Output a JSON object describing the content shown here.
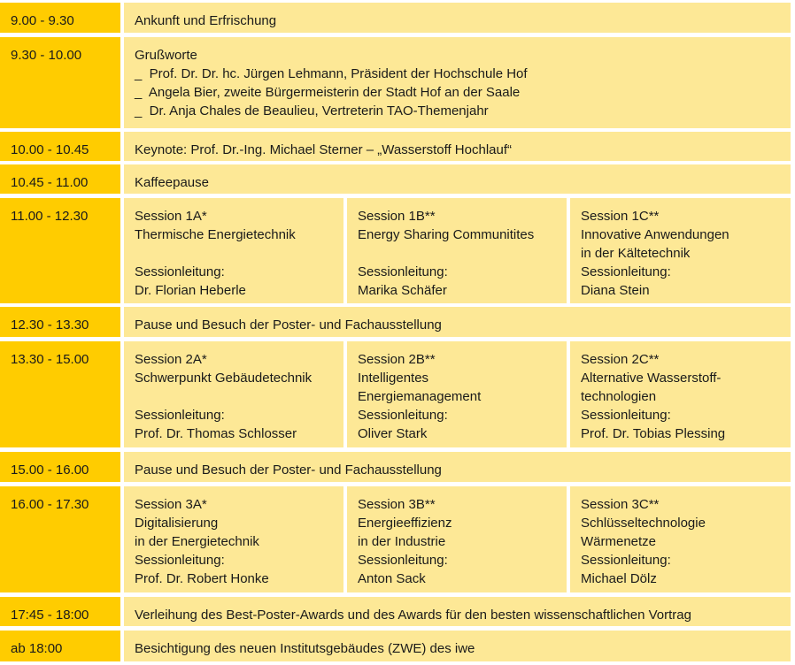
{
  "colors": {
    "time_bg": "#FFCC00",
    "content_bg": "#FDE896"
  },
  "rows": [
    {
      "time": "9.00 - 9.30",
      "lines": [
        "Ankunft und Erfrischung"
      ]
    },
    {
      "time": "9.30 - 10.00",
      "lines": [
        "Grußworte",
        "_  Prof. Dr. Dr. hc. Jürgen Lehmann, Präsident der Hochschule Hof",
        "_  Angela Bier, zweite Bürgermeisterin der Stadt Hof an der Saale",
        "_  Dr. Anja Chales de Beaulieu, Vertreterin TAO-Themenjahr"
      ]
    },
    {
      "time": "10.00 - 10.45",
      "lines": [
        "Keynote: Prof. Dr.-Ing. Michael Sterner – „Wasserstoff Hochlauf“"
      ]
    },
    {
      "time": "10.45 - 11.00",
      "lines": [
        "Kaffeepause"
      ]
    },
    {
      "time": "11.00 - 12.30",
      "sessions": [
        {
          "lines": [
            "Session 1A*",
            "Thermische Energietechnik",
            "",
            "Sessionleitung:",
            "Dr. Florian Heberle"
          ]
        },
        {
          "lines": [
            "Session 1B**",
            "Energy Sharing Communitites",
            "",
            "Sessionleitung:",
            "Marika Schäfer"
          ]
        },
        {
          "lines": [
            "Session 1C**",
            "Innovative Anwendungen",
            "in der Kältetechnik",
            "Sessionleitung:",
            "Diana Stein"
          ]
        }
      ]
    },
    {
      "time": "12.30 - 13.30",
      "lines": [
        "Pause und Besuch der Poster- und Fachausstellung"
      ]
    },
    {
      "time": "13.30 - 15.00",
      "sessions": [
        {
          "lines": [
            "Session 2A*",
            "Schwerpunkt Gebäudetechnik",
            "",
            "Sessionleitung:",
            "Prof. Dr. Thomas Schlosser"
          ]
        },
        {
          "lines": [
            "Session 2B**",
            "Intelligentes",
            "Energiemanagement",
            "Sessionleitung:",
            "Oliver Stark"
          ]
        },
        {
          "lines": [
            "Session 2C**",
            "Alternative Wasserstoff-",
            "technologien",
            "Sessionleitung:",
            "Prof. Dr. Tobias Plessing"
          ]
        }
      ]
    },
    {
      "time": "15.00 - 16.00",
      "lines": [
        "Pause und Besuch der Poster- und Fachausstellung"
      ]
    },
    {
      "time": "16.00 - 17.30",
      "sessions": [
        {
          "lines": [
            "Session 3A*",
            "Digitalisierung",
            "in der Energietechnik",
            "Sessionleitung:",
            "Prof. Dr. Robert Honke"
          ]
        },
        {
          "lines": [
            "Session 3B**",
            "Energieeffizienz",
            "in der Industrie",
            "Sessionleitung:",
            "Anton Sack"
          ]
        },
        {
          "lines": [
            "Session 3C**",
            "Schlüsseltechnologie",
            "Wärmenetze",
            "Sessionleitung:",
            "Michael Dölz"
          ]
        }
      ]
    },
    {
      "time": "17:45 - 18:00",
      "lines": [
        "Verleihung des Best-Poster-Awards und des Awards für den besten wissenschaftlichen Vortrag"
      ]
    },
    {
      "time": "ab 18:00",
      "lines": [
        "Besichtigung des neuen Institutsgebäudes (ZWE) des iwe"
      ]
    }
  ]
}
